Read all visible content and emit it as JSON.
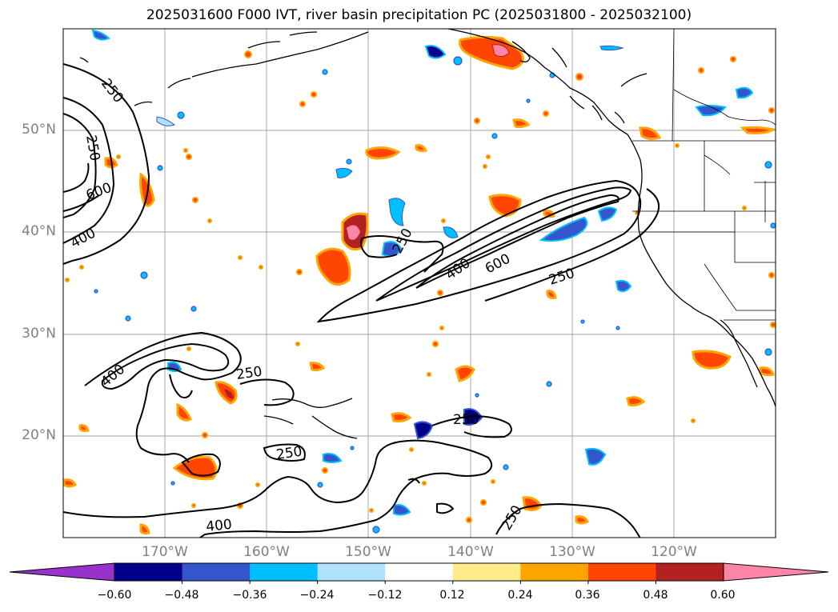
{
  "title": "2025031600 F000 IVT, river basin precipitation PC (2025031800 - 2025032100)",
  "map": {
    "projection": "PlateCarree",
    "extent": {
      "lon_min": -180,
      "lon_max": -110,
      "lat_min": 10,
      "lat_max": 60
    },
    "gridlines": true,
    "lat_labels": [
      "20°N",
      "30°N",
      "40°N",
      "50°N"
    ],
    "lon_labels": [
      "170°W",
      "160°W",
      "150°W",
      "140°W",
      "130°W",
      "120°W"
    ],
    "ivt_contour_labels": [
      "250",
      "250",
      "600",
      "400",
      "250",
      "400",
      "600",
      "250",
      "400",
      "250",
      "250",
      "250",
      "400",
      "250"
    ],
    "contour_levels": [
      250,
      400,
      600
    ]
  },
  "colorbar": {
    "ticks": [
      "−0.60",
      "−0.48",
      "−0.36",
      "−0.24",
      "−0.12",
      "0.12",
      "0.24",
      "0.36",
      "0.48",
      "0.60"
    ],
    "colors": [
      "#9932cc",
      "#00008b",
      "#3455cc",
      "#00bfff",
      "#b0e2ff",
      "#ffffff",
      "#ffeb8c",
      "#ffa500",
      "#ff4500",
      "#b22222",
      "#ff85a8"
    ],
    "extend": "both"
  }
}
